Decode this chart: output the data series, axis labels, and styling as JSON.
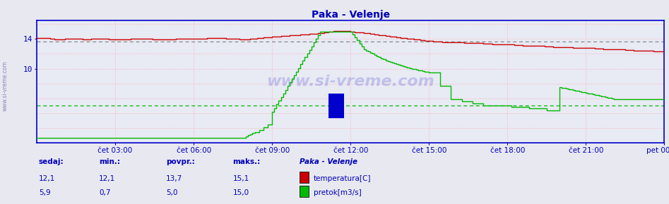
{
  "title": "Paka - Velenje",
  "title_color": "#0000bb",
  "fig_bg_color": "#e8e8f0",
  "plot_bg_color": "#e8eaf4",
  "xlabel": "",
  "ylabel": "",
  "ylim": [
    0,
    16.5
  ],
  "xlim": [
    0,
    288
  ],
  "yticks": [
    10,
    14
  ],
  "xtick_labels": [
    "čet 03:00",
    "čet 06:00",
    "čet 09:00",
    "čet 12:00",
    "čet 15:00",
    "čet 18:00",
    "čet 21:00",
    "pet 00:00"
  ],
  "xtick_positions": [
    36,
    72,
    108,
    144,
    180,
    216,
    252,
    288
  ],
  "grid_color_major": "#aaaacc",
  "grid_color_minor": "#ffaaaa",
  "temp_color": "#cc0000",
  "flow_color": "#00bb00",
  "avg_temp_color": "#555555",
  "avg_temp_line": 13.7,
  "avg_flow_line": 5.0,
  "sidebar_text_color": "#0000bb",
  "legend_title": "Paka - Velenje",
  "n_points": 289,
  "watermark": "www.si-vreme.com",
  "sedaj_label": "sedaj:",
  "min_label": "min.:",
  "povpr_label": "povpr.:",
  "maks_label": "maks.:",
  "temp_sedaj": "12,1",
  "temp_min": "12,1",
  "temp_povpr": "13,7",
  "temp_maks": "15,1",
  "flow_sedaj": "5,9",
  "flow_min": "0,7",
  "flow_povpr": "5,0",
  "flow_maks": "15,0",
  "temp_label": "temperatura[C]",
  "flow_label": "pretok[m3/s]"
}
